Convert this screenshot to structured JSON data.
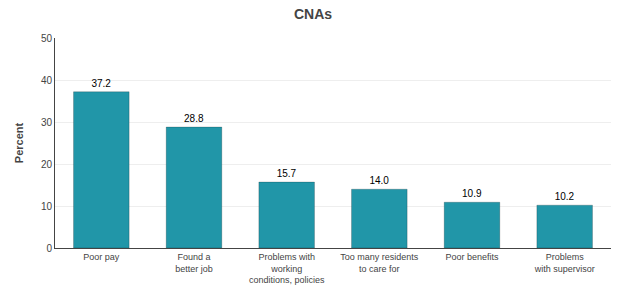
{
  "chart_data": {
    "type": "bar",
    "title": "CNAs",
    "ylabel": "Percent",
    "categories": [
      "Poor pay",
      "Found a\nbetter job",
      "Problems with\nworking\nconditions, policies",
      "Too many residents\nto care for",
      "Poor benefits",
      "Problems\nwith supervisor"
    ],
    "values": [
      37.2,
      28.8,
      15.7,
      14.0,
      10.9,
      10.2
    ],
    "value_labels": [
      "37.2",
      "28.8",
      "15.7",
      "14.0",
      "10.9",
      "10.2"
    ],
    "data_labels": true,
    "color": "#2196a8",
    "ylim": [
      0,
      50
    ],
    "yticks": [
      0,
      10,
      20,
      30,
      40,
      50
    ],
    "grid": true
  }
}
